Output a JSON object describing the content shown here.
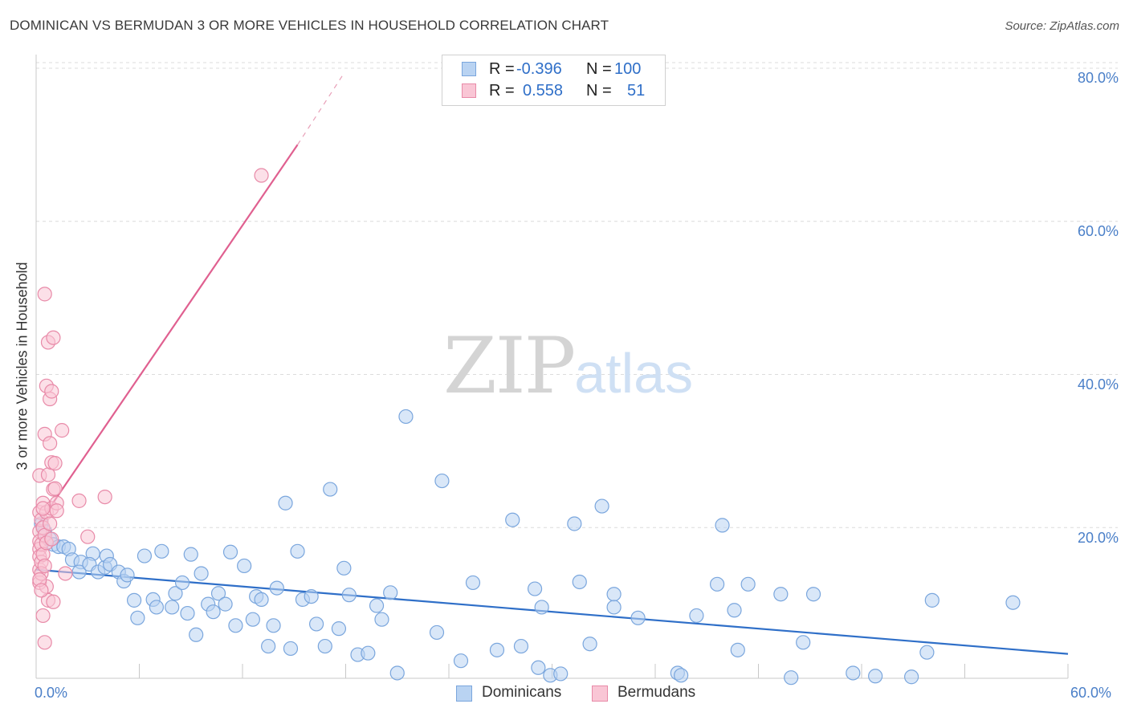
{
  "title": "DOMINICAN VS BERMUDAN 3 OR MORE VEHICLES IN HOUSEHOLD CORRELATION CHART",
  "source": "Source: ZipAtlas.com",
  "watermark": {
    "zip": "ZIP",
    "atlas": "atlas"
  },
  "legend": {
    "rows": [
      {
        "r_label": "R =",
        "r_value": "-0.396",
        "n_label": "N =",
        "n_value": "100",
        "color": "#b9d3f2",
        "border": "#7aa6dd"
      },
      {
        "r_label": "R =",
        "r_value": "0.558",
        "n_label": "N =",
        "n_value": "51",
        "color": "#f9c6d5",
        "border": "#e88aa8"
      }
    ]
  },
  "bottom_legend": [
    {
      "label": "Dominicans",
      "color": "#b9d3f2",
      "border": "#7aa6dd"
    },
    {
      "label": "Bermudans",
      "color": "#f9c6d5",
      "border": "#e88aa8"
    }
  ],
  "chart_data": {
    "type": "scatter",
    "title": "DOMINICAN VS BERMUDAN 3 OR MORE VEHICLES IN HOUSEHOLD CORRELATION CHART",
    "xlabel": "",
    "ylabel": "3 or more Vehicles in Household",
    "xlim": [
      0,
      60
    ],
    "ylim": [
      0,
      80
    ],
    "x_tick_labels": [
      "0.0%",
      "60.0%"
    ],
    "y_tick_labels": [
      "20.0%",
      "40.0%",
      "60.0%",
      "80.0%"
    ],
    "y_ticks": [
      20,
      40,
      60,
      80
    ],
    "series": [
      {
        "name": "Dominicans",
        "color": "#b9d3f2",
        "stroke": "#7aa6dd",
        "line_color": "#2f6fc8",
        "trend": {
          "x0": 0,
          "y0": 14.5,
          "x1": 60,
          "y1": 3.5
        },
        "points": [
          [
            0.3,
            20.5
          ],
          [
            0.5,
            19.5
          ],
          [
            0.8,
            18.5
          ],
          [
            1.0,
            17.8
          ],
          [
            1.3,
            17.5
          ],
          [
            1.6,
            17.5
          ],
          [
            1.9,
            17.2
          ],
          [
            2.1,
            15.8
          ],
          [
            2.6,
            15.5
          ],
          [
            2.5,
            14.2
          ],
          [
            3.3,
            16.6
          ],
          [
            3.1,
            15.2
          ],
          [
            3.6,
            14.2
          ],
          [
            4.0,
            14.8
          ],
          [
            4.1,
            16.3
          ],
          [
            4.3,
            15.2
          ],
          [
            4.8,
            14.2
          ],
          [
            5.1,
            13.0
          ],
          [
            5.3,
            13.8
          ],
          [
            5.7,
            10.5
          ],
          [
            5.9,
            8.2
          ],
          [
            6.3,
            16.3
          ],
          [
            6.8,
            10.6
          ],
          [
            7.0,
            9.6
          ],
          [
            7.3,
            16.9
          ],
          [
            7.9,
            9.6
          ],
          [
            8.1,
            11.4
          ],
          [
            8.5,
            12.8
          ],
          [
            8.8,
            8.8
          ],
          [
            9.0,
            16.5
          ],
          [
            9.3,
            6.0
          ],
          [
            9.6,
            14.0
          ],
          [
            10.0,
            10.0
          ],
          [
            10.3,
            9.0
          ],
          [
            10.6,
            11.4
          ],
          [
            11.0,
            10.0
          ],
          [
            11.3,
            16.8
          ],
          [
            11.6,
            7.2
          ],
          [
            12.1,
            15.0
          ],
          [
            12.6,
            8.0
          ],
          [
            12.8,
            11.0
          ],
          [
            13.1,
            10.6
          ],
          [
            13.5,
            4.5
          ],
          [
            13.8,
            7.2
          ],
          [
            14.0,
            12.1
          ],
          [
            14.5,
            23.2
          ],
          [
            14.8,
            4.2
          ],
          [
            15.2,
            16.9
          ],
          [
            15.5,
            10.6
          ],
          [
            16.0,
            11.0
          ],
          [
            16.3,
            7.4
          ],
          [
            16.8,
            4.5
          ],
          [
            17.1,
            25.0
          ],
          [
            17.6,
            6.8
          ],
          [
            17.9,
            14.7
          ],
          [
            18.2,
            11.2
          ],
          [
            18.7,
            3.4
          ],
          [
            19.3,
            3.6
          ],
          [
            19.8,
            9.8
          ],
          [
            20.1,
            8.0
          ],
          [
            20.6,
            11.5
          ],
          [
            21.0,
            1.0
          ],
          [
            21.5,
            34.5
          ],
          [
            23.3,
            6.3
          ],
          [
            23.6,
            26.1
          ],
          [
            24.7,
            2.6
          ],
          [
            25.4,
            12.8
          ],
          [
            26.8,
            4.0
          ],
          [
            27.7,
            21.0
          ],
          [
            28.2,
            4.5
          ],
          [
            29.2,
            1.7
          ],
          [
            29.4,
            9.6
          ],
          [
            29.9,
            0.7
          ],
          [
            30.5,
            0.9
          ],
          [
            31.3,
            20.5
          ],
          [
            31.6,
            12.9
          ],
          [
            32.2,
            4.8
          ],
          [
            32.9,
            22.8
          ],
          [
            33.6,
            11.3
          ],
          [
            33.6,
            9.6
          ],
          [
            35.0,
            8.2
          ],
          [
            37.3,
            1.0
          ],
          [
            37.5,
            0.7
          ],
          [
            38.4,
            8.5
          ],
          [
            39.6,
            12.6
          ],
          [
            39.9,
            20.3
          ],
          [
            40.6,
            9.2
          ],
          [
            40.8,
            4.0
          ],
          [
            41.4,
            12.6
          ],
          [
            43.3,
            11.3
          ],
          [
            43.9,
            0.4
          ],
          [
            44.6,
            5.0
          ],
          [
            45.2,
            11.3
          ],
          [
            47.5,
            1.0
          ],
          [
            48.8,
            0.6
          ],
          [
            50.9,
            0.5
          ],
          [
            51.8,
            3.7
          ],
          [
            52.1,
            10.5
          ],
          [
            56.8,
            10.2
          ],
          [
            29.0,
            12.0
          ]
        ]
      },
      {
        "name": "Bermudans",
        "color": "#f9c6d5",
        "stroke": "#e88aa8",
        "line_color": "#e06090",
        "trend": {
          "x0": 0,
          "y0": 20.0,
          "x1": 15.2,
          "y1": 70.0
        },
        "trend_dashed": {
          "x0": 15.2,
          "y0": 70.0,
          "x1": 17.8,
          "y1": 79.0
        },
        "points": [
          [
            0.2,
            26.8
          ],
          [
            0.2,
            22.0
          ],
          [
            0.2,
            19.5
          ],
          [
            0.2,
            18.2
          ],
          [
            0.2,
            17.2
          ],
          [
            0.2,
            16.2
          ],
          [
            0.2,
            14.5
          ],
          [
            0.2,
            12.8
          ],
          [
            0.3,
            21.0
          ],
          [
            0.3,
            15.5
          ],
          [
            0.3,
            14.0
          ],
          [
            0.4,
            8.5
          ],
          [
            0.4,
            20.0
          ],
          [
            0.4,
            23.2
          ],
          [
            0.5,
            5.0
          ],
          [
            0.5,
            32.2
          ],
          [
            0.5,
            50.5
          ],
          [
            0.6,
            38.5
          ],
          [
            0.6,
            22.0
          ],
          [
            0.6,
            12.3
          ],
          [
            0.7,
            44.2
          ],
          [
            0.7,
            26.9
          ],
          [
            0.8,
            36.8
          ],
          [
            0.8,
            31.0
          ],
          [
            0.9,
            37.8
          ],
          [
            0.9,
            28.5
          ],
          [
            0.9,
            22.5
          ],
          [
            1.0,
            44.8
          ],
          [
            1.0,
            25.0
          ],
          [
            1.1,
            28.4
          ],
          [
            1.1,
            25.1
          ],
          [
            1.2,
            23.2
          ],
          [
            1.2,
            22.2
          ],
          [
            1.5,
            32.7
          ],
          [
            1.7,
            14.0
          ],
          [
            2.5,
            23.5
          ],
          [
            3.0,
            18.8
          ],
          [
            4.0,
            24.0
          ],
          [
            0.3,
            17.8
          ],
          [
            0.4,
            16.5
          ],
          [
            0.5,
            19.0
          ],
          [
            0.6,
            18.0
          ],
          [
            0.7,
            10.5
          ],
          [
            0.8,
            20.5
          ],
          [
            1.0,
            10.3
          ],
          [
            0.2,
            13.2
          ],
          [
            0.3,
            11.8
          ],
          [
            0.5,
            15.0
          ],
          [
            0.9,
            18.5
          ],
          [
            13.1,
            66.0
          ],
          [
            0.4,
            22.5
          ]
        ]
      }
    ]
  }
}
